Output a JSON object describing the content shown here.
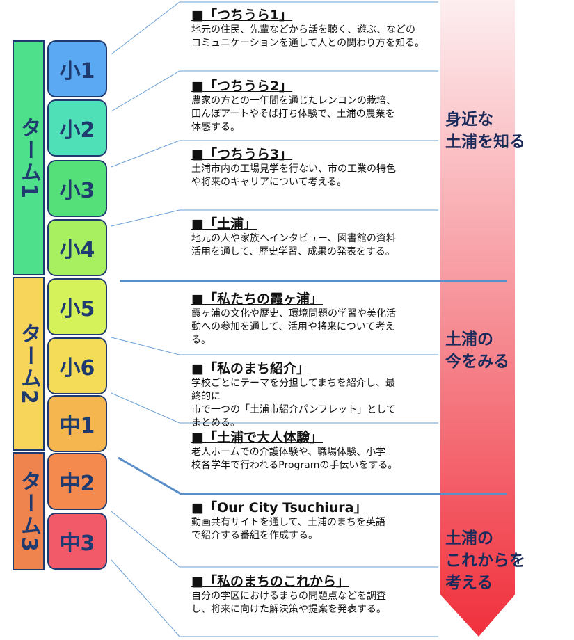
{
  "terms": [
    "ターム1",
    "ターム2",
    "ターム3"
  ],
  "grades": [
    "小1",
    "小2",
    "小3",
    "小4",
    "小5",
    "小6",
    "中1",
    "中2",
    "中3"
  ],
  "items": [
    {
      "title": "■「つちうら1」",
      "lines": [
        "地元の住民、先輩などから話を聴く、遊ぶ、などの",
        "コミュニケーションを通して人との関わり方を知る。"
      ]
    },
    {
      "title": "■「つちうら2」",
      "lines": [
        "農家の方との一年間を通じたレンコンの栽培、",
        "田んぼアートやそば打ち体験で、土浦の農業を",
        "体感する。"
      ]
    },
    {
      "title": "■「つちうら3」",
      "lines": [
        "土浦市内の工場見学を行ない、市の工業の特色",
        "や将来のキャリアについて考える。"
      ]
    },
    {
      "title": "■「土浦」",
      "lines": [
        "地元の人や家族へインタビュー、図書館の資料",
        "活用を通して、歴史学習、成果の発表をする。"
      ]
    },
    {
      "title": "■「私たちの霞ヶ浦」",
      "lines": [
        "霞ヶ浦の文化や歴史、環境問題の学習や美化活",
        "動への参加を通して、活用や将来について考え",
        "る。"
      ]
    },
    {
      "title": "■「私のまち紹介」",
      "lines": [
        "学校ごとにテーマを分担してまちを紹介し、最",
        "終的に",
        "市で一つの「土浦市紹介パンフレット」として",
        "まとめる。"
      ]
    },
    {
      "title": "■「土浦で大人体験」",
      "lines": [
        "老人ホームでの介護体験や、職場体験、小学",
        "校各学年で行われるProgramの手伝いをする。"
      ]
    },
    {
      "title": "■「Our City Tsuchiura」",
      "lines": [
        "動画共有サイトを通して、土浦のまちを英語",
        "で紹介する番組を作成する。"
      ]
    },
    {
      "title": "■「私のまちのこれから」",
      "lines": [
        "自分の学区におけるまちの問題点などを調査",
        "し、将来に向けた解決策や提案を発表する。"
      ]
    }
  ],
  "side_labels": [
    [
      "身近な",
      "土浦を知る"
    ],
    [
      "土浦の",
      "今をみる"
    ],
    [
      "土浦の",
      "これからを",
      "考える"
    ]
  ]
}
